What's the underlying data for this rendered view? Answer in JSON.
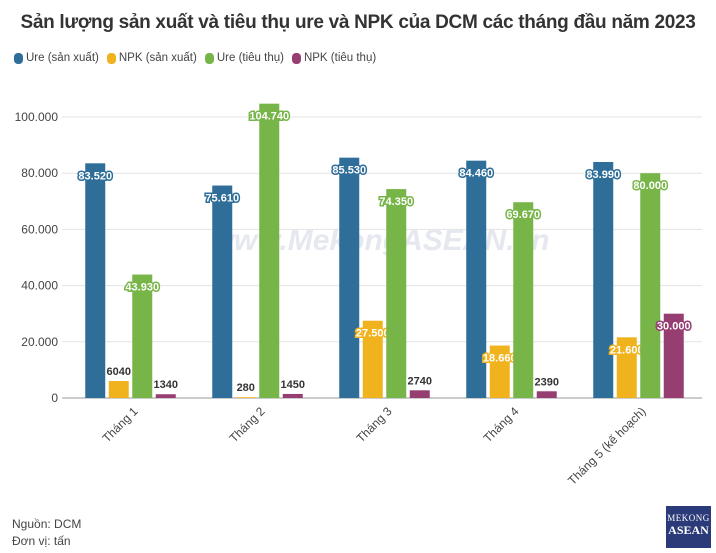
{
  "chart_data": {
    "type": "bar",
    "title": "Sản lượng sản xuất và tiêu thụ ure và NPK của DCM các tháng đầu năm 2023",
    "categories": [
      "Tháng 1",
      "Tháng 2",
      "Tháng 3",
      "Tháng 4",
      "Tháng 5 (kế hoạch)"
    ],
    "series": [
      {
        "name": "Ure (sản xuất)",
        "color": "#2f6e99",
        "values": [
          83520,
          75610,
          85530,
          84460,
          83990
        ],
        "labels": [
          "83.520",
          "75.610",
          "85.530",
          "84.460",
          "83.990"
        ]
      },
      {
        "name": "NPK (sản xuất)",
        "color": "#f0b31e",
        "values": [
          6040,
          280,
          27500,
          18660,
          21600
        ],
        "labels": [
          "6040",
          "280",
          "27.500",
          "18.660",
          "21.600"
        ]
      },
      {
        "name": "Ure (tiêu thụ)",
        "color": "#78b548",
        "values": [
          43930,
          104740,
          74350,
          69670,
          80000
        ],
        "labels": [
          "43.930",
          "104.740",
          "74.350",
          "69.670",
          "80.000"
        ]
      },
      {
        "name": "NPK (tiêu thụ)",
        "color": "#963d71",
        "values": [
          1340,
          1450,
          2740,
          2390,
          30000
        ],
        "labels": [
          "1340",
          "1450",
          "2740",
          "2390",
          "30.000"
        ]
      }
    ],
    "yticks": [
      0,
      20000,
      40000,
      60000,
      80000,
      100000
    ],
    "ytick_labels": [
      "0",
      "20.000",
      "40.000",
      "60.000",
      "80.000",
      "100.000"
    ],
    "ylim": [
      0,
      100000
    ],
    "grid": true,
    "legend": "top-left"
  },
  "watermark": "www.MekongASEAN.vn",
  "source": "Nguồn: DCM",
  "unit": "Đơn vị: tấn",
  "logo": {
    "line1": "MEKONG",
    "line2": "ASEAN"
  }
}
